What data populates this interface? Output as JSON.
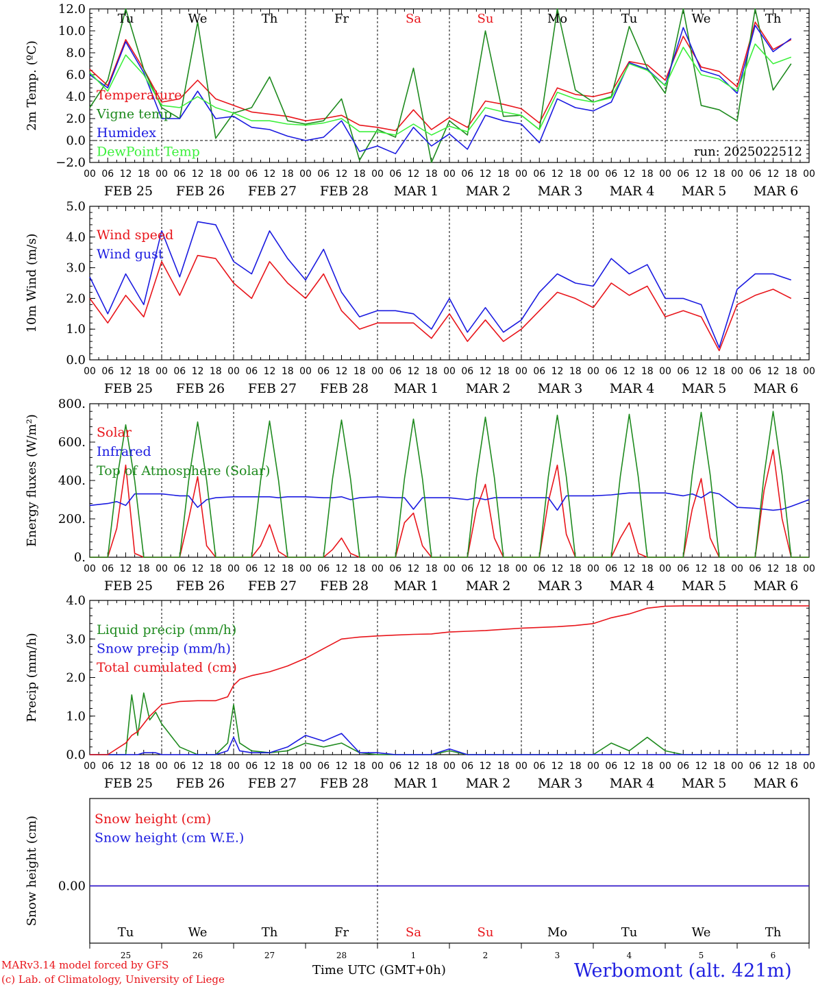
{
  "colors": {
    "red": "#e8141a",
    "blue": "#1a1ae0",
    "green": "#1e8a1e",
    "light_green": "#3cf03c",
    "axis": "#000000"
  },
  "time_axis": {
    "hour_labels": [
      "00",
      "06",
      "12",
      "18"
    ],
    "day_labels": [
      "FEB 25",
      "FEB 26",
      "FEB 27",
      "FEB 28",
      "MAR  1",
      "MAR  2",
      "MAR  3",
      "MAR  4",
      "MAR  5",
      "MAR  6"
    ],
    "weekdays": [
      "Tu",
      "We",
      "Th",
      "Fr",
      "Sa",
      "Su",
      "Mo",
      "Tu",
      "We",
      "Th"
    ],
    "weekend_indices": [
      4,
      5
    ],
    "day_numbers": [
      "25",
      "26",
      "27",
      "28",
      "1",
      "2",
      "3",
      "4",
      "5",
      "6"
    ],
    "month_label": "MAR"
  },
  "footer": {
    "model_line": "MARv3.14 model forced by GFS",
    "credit_line": "(c) Lab. of Climatology, University of Liege",
    "xlabel": "Time UTC (GMT+0h)",
    "station": "Werbomont (alt. 421m)"
  },
  "chart_data": [
    {
      "type": "line",
      "ylabel": "2m Temp. (ºC)",
      "ylim": [
        -2,
        12
      ],
      "yticks": [
        "−2.0",
        "0.0",
        "2.0",
        "4.0",
        "6.0",
        "8.0",
        "10.0",
        "12.0"
      ],
      "run_label": "run: 2025022512",
      "zero_line": true,
      "x_hours": [
        0,
        6,
        12,
        18,
        24,
        30,
        36,
        42,
        48,
        54,
        60,
        66,
        72,
        78,
        84,
        90,
        96,
        102,
        108,
        114,
        120,
        126,
        132,
        138,
        144,
        150,
        156,
        162,
        168,
        174,
        180,
        186,
        192,
        198,
        204,
        210,
        216,
        222,
        228,
        234
      ],
      "series": [
        {
          "name": "Temperature",
          "color": "#e8141a",
          "values": [
            6.5,
            5.0,
            9.2,
            6.5,
            3.5,
            3.8,
            5.5,
            3.8,
            3.2,
            2.6,
            2.4,
            2.2,
            1.8,
            2.0,
            2.3,
            1.4,
            1.2,
            0.9,
            2.8,
            1.0,
            2.1,
            1.2,
            3.6,
            3.3,
            2.9,
            1.6,
            4.8,
            4.2,
            4.0,
            4.4,
            7.2,
            6.9,
            5.5,
            9.5,
            6.7,
            6.3,
            4.9,
            10.8,
            8.3,
            9.2
          ]
        },
        {
          "name": "Vigne temp",
          "color": "#1e8a1e",
          "values": [
            3.0,
            5.5,
            12.0,
            6.5,
            3.0,
            2.0,
            10.8,
            0.2,
            2.5,
            3.0,
            5.8,
            1.8,
            1.5,
            1.8,
            3.8,
            -1.8,
            1.0,
            0.3,
            6.6,
            -2.0,
            1.8,
            0.5,
            10.0,
            2.2,
            2.3,
            1.0,
            12.0,
            4.6,
            3.5,
            4.0,
            10.4,
            6.6,
            4.3,
            12.0,
            3.2,
            2.8,
            1.8,
            12.0,
            4.6,
            7.0
          ]
        },
        {
          "name": "Humidex",
          "color": "#1a1ae0",
          "values": [
            6.0,
            4.8,
            9.0,
            6.2,
            2.0,
            2.0,
            4.5,
            2.0,
            2.2,
            1.2,
            1.0,
            0.4,
            0.0,
            0.3,
            1.8,
            -1.0,
            -0.5,
            -1.2,
            1.2,
            -0.5,
            0.6,
            -0.8,
            2.3,
            1.8,
            1.5,
            -0.2,
            3.8,
            3.0,
            2.7,
            3.5,
            7.1,
            6.5,
            5.0,
            10.3,
            6.4,
            5.9,
            4.3,
            10.5,
            8.1,
            9.3
          ]
        },
        {
          "name": "DewPoint Temp",
          "color": "#3cf03c",
          "values": [
            6.2,
            4.5,
            7.8,
            6.0,
            3.2,
            3.0,
            4.0,
            3.0,
            2.5,
            1.8,
            1.8,
            1.5,
            1.4,
            1.6,
            2.0,
            0.8,
            0.8,
            0.5,
            1.5,
            0.5,
            1.3,
            0.8,
            3.0,
            2.6,
            2.3,
            1.0,
            4.4,
            3.8,
            3.5,
            3.9,
            7.0,
            6.4,
            5.0,
            8.5,
            6.0,
            5.6,
            4.5,
            8.8,
            7.0,
            7.6
          ]
        }
      ]
    },
    {
      "type": "line",
      "ylabel": "10m Wind (m/s)",
      "ylim": [
        0,
        5
      ],
      "yticks": [
        "0.0",
        "1.0",
        "2.0",
        "3.0",
        "4.0",
        "5.0"
      ],
      "x_hours": [
        0,
        6,
        12,
        18,
        24,
        30,
        36,
        42,
        48,
        54,
        60,
        66,
        72,
        78,
        84,
        90,
        96,
        102,
        108,
        114,
        120,
        126,
        132,
        138,
        144,
        150,
        156,
        162,
        168,
        174,
        180,
        186,
        192,
        198,
        204,
        210,
        216,
        222,
        228,
        234
      ],
      "series": [
        {
          "name": "Wind speed",
          "color": "#e8141a",
          "values": [
            2.0,
            1.2,
            2.1,
            1.4,
            3.2,
            2.1,
            3.4,
            3.3,
            2.5,
            2.0,
            3.2,
            2.5,
            2.0,
            2.8,
            1.6,
            1.0,
            1.2,
            1.2,
            1.2,
            0.7,
            1.5,
            0.6,
            1.3,
            0.6,
            1.0,
            1.6,
            2.2,
            2.0,
            1.7,
            2.5,
            2.1,
            2.4,
            1.4,
            1.6,
            1.4,
            0.3,
            1.8,
            2.1,
            2.3,
            2.0
          ]
        },
        {
          "name": "Wind gust",
          "color": "#1a1ae0",
          "values": [
            2.7,
            1.5,
            2.8,
            1.8,
            4.2,
            2.7,
            4.5,
            4.4,
            3.2,
            2.8,
            4.2,
            3.3,
            2.6,
            3.6,
            2.2,
            1.4,
            1.6,
            1.6,
            1.5,
            1.0,
            2.0,
            0.9,
            1.7,
            0.9,
            1.3,
            2.2,
            2.8,
            2.5,
            2.4,
            3.3,
            2.8,
            3.1,
            2.0,
            2.0,
            1.8,
            0.4,
            2.3,
            2.8,
            2.8,
            2.6
          ]
        }
      ]
    },
    {
      "type": "line",
      "ylabel": "Energy fluxes (W/m²)",
      "ylim": [
        0,
        800
      ],
      "yticks": [
        "0.",
        "200.",
        "400.",
        "600.",
        "800."
      ],
      "x_hours": [
        0,
        6,
        9,
        12,
        15,
        18,
        24,
        30,
        33,
        36,
        39,
        42,
        48,
        54,
        57,
        60,
        63,
        66,
        72,
        78,
        81,
        84,
        87,
        90,
        96,
        102,
        105,
        108,
        111,
        114,
        120,
        126,
        129,
        132,
        135,
        138,
        144,
        150,
        153,
        156,
        159,
        162,
        168,
        174,
        177,
        180,
        183,
        186,
        192,
        198,
        201,
        204,
        207,
        210,
        216,
        222,
        225,
        228,
        231,
        234,
        240
      ],
      "series": [
        {
          "name": "Solar",
          "color": "#e8141a",
          "values": [
            0,
            0,
            150,
            480,
            20,
            0,
            0,
            0,
            200,
            420,
            60,
            0,
            0,
            0,
            60,
            170,
            30,
            0,
            0,
            0,
            40,
            100,
            20,
            0,
            0,
            0,
            180,
            230,
            60,
            0,
            0,
            0,
            250,
            380,
            100,
            0,
            0,
            0,
            290,
            480,
            120,
            0,
            0,
            0,
            100,
            180,
            20,
            0,
            0,
            0,
            250,
            410,
            100,
            0,
            0,
            0,
            350,
            560,
            200,
            0,
            0
          ]
        },
        {
          "name": "Infrared",
          "color": "#1a1ae0",
          "values": [
            270,
            280,
            290,
            270,
            330,
            330,
            330,
            320,
            320,
            260,
            300,
            310,
            315,
            315,
            315,
            315,
            310,
            315,
            315,
            310,
            310,
            315,
            300,
            310,
            315,
            310,
            310,
            250,
            310,
            310,
            310,
            300,
            310,
            300,
            310,
            310,
            310,
            310,
            310,
            245,
            320,
            320,
            320,
            325,
            330,
            335,
            335,
            335,
            335,
            320,
            330,
            310,
            340,
            330,
            260,
            255,
            250,
            245,
            250,
            265,
            300
          ]
        },
        {
          "name": "Top of Atmosphere (Solar)",
          "color": "#1e8a1e",
          "values": [
            0,
            0,
            400,
            690,
            400,
            0,
            0,
            0,
            400,
            705,
            400,
            0,
            0,
            0,
            400,
            710,
            400,
            0,
            0,
            0,
            410,
            715,
            410,
            0,
            0,
            0,
            410,
            720,
            410,
            0,
            0,
            0,
            415,
            730,
            415,
            0,
            0,
            0,
            420,
            740,
            420,
            0,
            0,
            0,
            420,
            745,
            420,
            0,
            0,
            0,
            430,
            755,
            430,
            0,
            0,
            0,
            430,
            760,
            430,
            0,
            0
          ]
        }
      ]
    },
    {
      "type": "line",
      "ylabel": "Precip (mm/h)",
      "ylim": [
        0,
        4
      ],
      "yticks": [
        "0.0",
        "1.0",
        "2.0",
        "3.0",
        "4.0"
      ],
      "x_hours": [
        0,
        6,
        12,
        14,
        16,
        18,
        20,
        22,
        24,
        30,
        36,
        42,
        46,
        48,
        50,
        54,
        60,
        66,
        72,
        78,
        84,
        90,
        96,
        102,
        108,
        114,
        120,
        126,
        132,
        138,
        144,
        150,
        156,
        162,
        168,
        174,
        180,
        186,
        192,
        198,
        204,
        210,
        216,
        222,
        228,
        234,
        240
      ],
      "series": [
        {
          "name": "Liquid precip (mm/h)",
          "color": "#1e8a1e",
          "values": [
            0,
            0,
            0,
            1.55,
            0.5,
            1.6,
            0.9,
            1.1,
            0.8,
            0.2,
            0,
            0,
            0.3,
            1.3,
            0.3,
            0.1,
            0.05,
            0.1,
            0.3,
            0.2,
            0.3,
            0.05,
            0,
            0,
            0,
            0,
            0.1,
            0,
            0,
            0,
            0,
            0,
            0,
            0,
            0,
            0.3,
            0.1,
            0.45,
            0.1,
            0,
            0,
            0,
            0,
            0,
            0,
            0,
            0
          ]
        },
        {
          "name": "Snow precip (mm/h)",
          "color": "#1a1ae0",
          "values": [
            0,
            0,
            0,
            0,
            0,
            0.05,
            0.05,
            0.05,
            0,
            0,
            0,
            0,
            0.1,
            0.45,
            0.1,
            0.05,
            0.05,
            0.2,
            0.5,
            0.35,
            0.55,
            0.05,
            0.05,
            0,
            0,
            0,
            0.15,
            0,
            0,
            0,
            0,
            0,
            0,
            0,
            0,
            0,
            0,
            0,
            0,
            0,
            0,
            0,
            0,
            0,
            0,
            0,
            0
          ]
        },
        {
          "name": "Total cumulated (cm)",
          "color": "#e8141a",
          "values": [
            0,
            0,
            0.3,
            0.5,
            0.6,
            0.8,
            1.0,
            1.15,
            1.3,
            1.38,
            1.4,
            1.4,
            1.5,
            1.8,
            1.95,
            2.05,
            2.15,
            2.3,
            2.5,
            2.75,
            3.0,
            3.05,
            3.08,
            3.1,
            3.12,
            3.13,
            3.18,
            3.2,
            3.22,
            3.25,
            3.28,
            3.3,
            3.32,
            3.35,
            3.4,
            3.55,
            3.65,
            3.8,
            3.85,
            3.86,
            3.86,
            3.86,
            3.86,
            3.86,
            3.86,
            3.86,
            3.86
          ]
        }
      ]
    },
    {
      "type": "line",
      "ylabel": "Snow height (cm)",
      "ytick_label": "0.00",
      "x_hours": [
        0,
        240
      ],
      "series": [
        {
          "name": "Snow height (cm)",
          "color": "#e8141a",
          "values": [
            0,
            0
          ]
        },
        {
          "name": "Snow height (cm W.E.)",
          "color": "#1a1ae0",
          "values": [
            0,
            0
          ]
        }
      ]
    }
  ]
}
